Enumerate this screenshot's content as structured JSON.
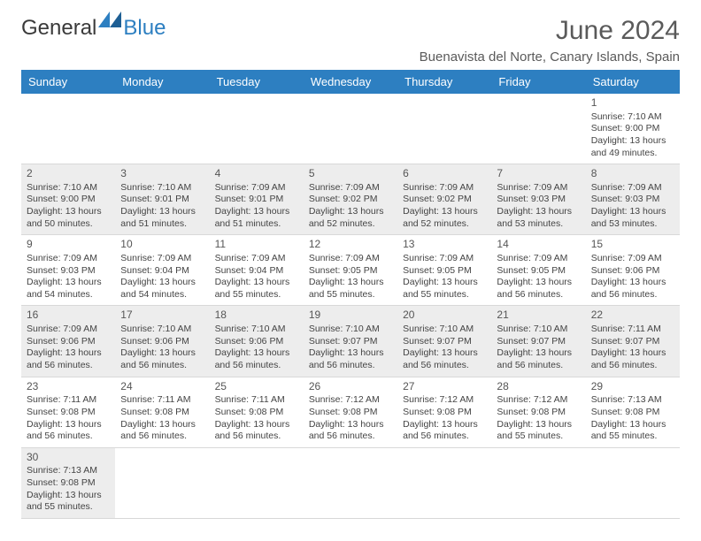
{
  "logo": {
    "text1": "General",
    "text2": "Blue",
    "tri_color": "#2d7fc1"
  },
  "header": {
    "month": "June 2024",
    "location": "Buenavista del Norte, Canary Islands, Spain"
  },
  "colors": {
    "header_bg": "#2d7fc1",
    "shaded_bg": "#ededed",
    "border": "#d8d8d8"
  },
  "weekdays": [
    "Sunday",
    "Monday",
    "Tuesday",
    "Wednesday",
    "Thursday",
    "Friday",
    "Saturday"
  ],
  "weeks": [
    [
      {
        "empty": true
      },
      {
        "empty": true
      },
      {
        "empty": true
      },
      {
        "empty": true
      },
      {
        "empty": true
      },
      {
        "empty": true
      },
      {
        "day": "1",
        "sunrise": "Sunrise: 7:10 AM",
        "sunset": "Sunset: 9:00 PM",
        "dl1": "Daylight: 13 hours",
        "dl2": "and 49 minutes."
      }
    ],
    [
      {
        "day": "2",
        "shaded": true,
        "sunrise": "Sunrise: 7:10 AM",
        "sunset": "Sunset: 9:00 PM",
        "dl1": "Daylight: 13 hours",
        "dl2": "and 50 minutes."
      },
      {
        "day": "3",
        "shaded": true,
        "sunrise": "Sunrise: 7:10 AM",
        "sunset": "Sunset: 9:01 PM",
        "dl1": "Daylight: 13 hours",
        "dl2": "and 51 minutes."
      },
      {
        "day": "4",
        "shaded": true,
        "sunrise": "Sunrise: 7:09 AM",
        "sunset": "Sunset: 9:01 PM",
        "dl1": "Daylight: 13 hours",
        "dl2": "and 51 minutes."
      },
      {
        "day": "5",
        "shaded": true,
        "sunrise": "Sunrise: 7:09 AM",
        "sunset": "Sunset: 9:02 PM",
        "dl1": "Daylight: 13 hours",
        "dl2": "and 52 minutes."
      },
      {
        "day": "6",
        "shaded": true,
        "sunrise": "Sunrise: 7:09 AM",
        "sunset": "Sunset: 9:02 PM",
        "dl1": "Daylight: 13 hours",
        "dl2": "and 52 minutes."
      },
      {
        "day": "7",
        "shaded": true,
        "sunrise": "Sunrise: 7:09 AM",
        "sunset": "Sunset: 9:03 PM",
        "dl1": "Daylight: 13 hours",
        "dl2": "and 53 minutes."
      },
      {
        "day": "8",
        "shaded": true,
        "sunrise": "Sunrise: 7:09 AM",
        "sunset": "Sunset: 9:03 PM",
        "dl1": "Daylight: 13 hours",
        "dl2": "and 53 minutes."
      }
    ],
    [
      {
        "day": "9",
        "sunrise": "Sunrise: 7:09 AM",
        "sunset": "Sunset: 9:03 PM",
        "dl1": "Daylight: 13 hours",
        "dl2": "and 54 minutes."
      },
      {
        "day": "10",
        "sunrise": "Sunrise: 7:09 AM",
        "sunset": "Sunset: 9:04 PM",
        "dl1": "Daylight: 13 hours",
        "dl2": "and 54 minutes."
      },
      {
        "day": "11",
        "sunrise": "Sunrise: 7:09 AM",
        "sunset": "Sunset: 9:04 PM",
        "dl1": "Daylight: 13 hours",
        "dl2": "and 55 minutes."
      },
      {
        "day": "12",
        "sunrise": "Sunrise: 7:09 AM",
        "sunset": "Sunset: 9:05 PM",
        "dl1": "Daylight: 13 hours",
        "dl2": "and 55 minutes."
      },
      {
        "day": "13",
        "sunrise": "Sunrise: 7:09 AM",
        "sunset": "Sunset: 9:05 PM",
        "dl1": "Daylight: 13 hours",
        "dl2": "and 55 minutes."
      },
      {
        "day": "14",
        "sunrise": "Sunrise: 7:09 AM",
        "sunset": "Sunset: 9:05 PM",
        "dl1": "Daylight: 13 hours",
        "dl2": "and 56 minutes."
      },
      {
        "day": "15",
        "sunrise": "Sunrise: 7:09 AM",
        "sunset": "Sunset: 9:06 PM",
        "dl1": "Daylight: 13 hours",
        "dl2": "and 56 minutes."
      }
    ],
    [
      {
        "day": "16",
        "shaded": true,
        "sunrise": "Sunrise: 7:09 AM",
        "sunset": "Sunset: 9:06 PM",
        "dl1": "Daylight: 13 hours",
        "dl2": "and 56 minutes."
      },
      {
        "day": "17",
        "shaded": true,
        "sunrise": "Sunrise: 7:10 AM",
        "sunset": "Sunset: 9:06 PM",
        "dl1": "Daylight: 13 hours",
        "dl2": "and 56 minutes."
      },
      {
        "day": "18",
        "shaded": true,
        "sunrise": "Sunrise: 7:10 AM",
        "sunset": "Sunset: 9:06 PM",
        "dl1": "Daylight: 13 hours",
        "dl2": "and 56 minutes."
      },
      {
        "day": "19",
        "shaded": true,
        "sunrise": "Sunrise: 7:10 AM",
        "sunset": "Sunset: 9:07 PM",
        "dl1": "Daylight: 13 hours",
        "dl2": "and 56 minutes."
      },
      {
        "day": "20",
        "shaded": true,
        "sunrise": "Sunrise: 7:10 AM",
        "sunset": "Sunset: 9:07 PM",
        "dl1": "Daylight: 13 hours",
        "dl2": "and 56 minutes."
      },
      {
        "day": "21",
        "shaded": true,
        "sunrise": "Sunrise: 7:10 AM",
        "sunset": "Sunset: 9:07 PM",
        "dl1": "Daylight: 13 hours",
        "dl2": "and 56 minutes."
      },
      {
        "day": "22",
        "shaded": true,
        "sunrise": "Sunrise: 7:11 AM",
        "sunset": "Sunset: 9:07 PM",
        "dl1": "Daylight: 13 hours",
        "dl2": "and 56 minutes."
      }
    ],
    [
      {
        "day": "23",
        "sunrise": "Sunrise: 7:11 AM",
        "sunset": "Sunset: 9:08 PM",
        "dl1": "Daylight: 13 hours",
        "dl2": "and 56 minutes."
      },
      {
        "day": "24",
        "sunrise": "Sunrise: 7:11 AM",
        "sunset": "Sunset: 9:08 PM",
        "dl1": "Daylight: 13 hours",
        "dl2": "and 56 minutes."
      },
      {
        "day": "25",
        "sunrise": "Sunrise: 7:11 AM",
        "sunset": "Sunset: 9:08 PM",
        "dl1": "Daylight: 13 hours",
        "dl2": "and 56 minutes."
      },
      {
        "day": "26",
        "sunrise": "Sunrise: 7:12 AM",
        "sunset": "Sunset: 9:08 PM",
        "dl1": "Daylight: 13 hours",
        "dl2": "and 56 minutes."
      },
      {
        "day": "27",
        "sunrise": "Sunrise: 7:12 AM",
        "sunset": "Sunset: 9:08 PM",
        "dl1": "Daylight: 13 hours",
        "dl2": "and 56 minutes."
      },
      {
        "day": "28",
        "sunrise": "Sunrise: 7:12 AM",
        "sunset": "Sunset: 9:08 PM",
        "dl1": "Daylight: 13 hours",
        "dl2": "and 55 minutes."
      },
      {
        "day": "29",
        "sunrise": "Sunrise: 7:13 AM",
        "sunset": "Sunset: 9:08 PM",
        "dl1": "Daylight: 13 hours",
        "dl2": "and 55 minutes."
      }
    ],
    [
      {
        "day": "30",
        "shaded": true,
        "sunrise": "Sunrise: 7:13 AM",
        "sunset": "Sunset: 9:08 PM",
        "dl1": "Daylight: 13 hours",
        "dl2": "and 55 minutes."
      },
      {
        "empty": true
      },
      {
        "empty": true
      },
      {
        "empty": true
      },
      {
        "empty": true
      },
      {
        "empty": true
      },
      {
        "empty": true
      }
    ]
  ]
}
